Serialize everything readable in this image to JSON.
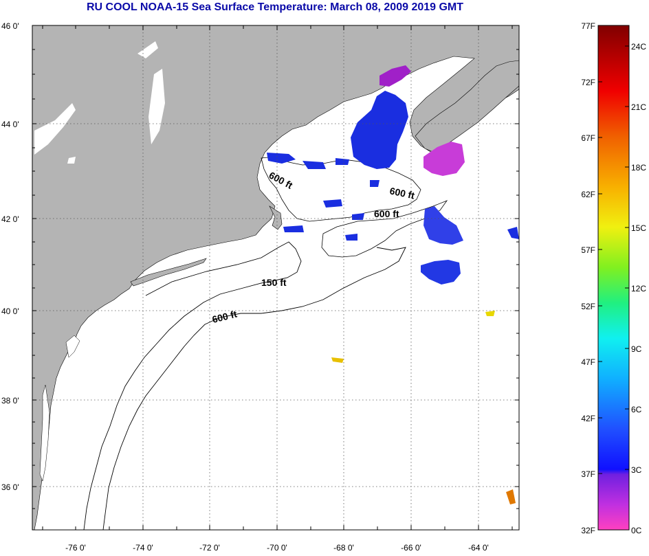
{
  "title": "RU COOL  NOAA-15  Sea Surface Temperature:  March 08, 2009 2019 GMT",
  "map": {
    "lat_labels": [
      "46 0'",
      "44 0'",
      "42 0'",
      "40 0'",
      "38 0'",
      "36 0'"
    ],
    "lon_labels": [
      "-76 0'",
      "-74 0'",
      "-72 0'",
      "-70 0'",
      "-68 0'",
      "-66 0'",
      "-64 0'"
    ],
    "contour_labels": [
      "600 ft",
      "600 ft",
      "600 ft",
      "150 ft",
      "600 ft"
    ],
    "colors": {
      "land": "#b4b4b4",
      "ocean": "#ffffff",
      "cold_blue": "#1a2ee0",
      "purple": "#a020c8",
      "magenta": "#c83cd8",
      "yellow": "#e8c000"
    }
  },
  "colorbar": {
    "fahrenheit_labels": [
      "77F",
      "72F",
      "67F",
      "62F",
      "57F",
      "52F",
      "47F",
      "42F",
      "37F",
      "32F"
    ],
    "celsius_labels": [
      "24C",
      "21C",
      "18C",
      "15C",
      "12C",
      "9C",
      "6C",
      "3C",
      "0C"
    ],
    "range_f": [
      32,
      77
    ],
    "range_c": [
      0,
      25
    ]
  }
}
